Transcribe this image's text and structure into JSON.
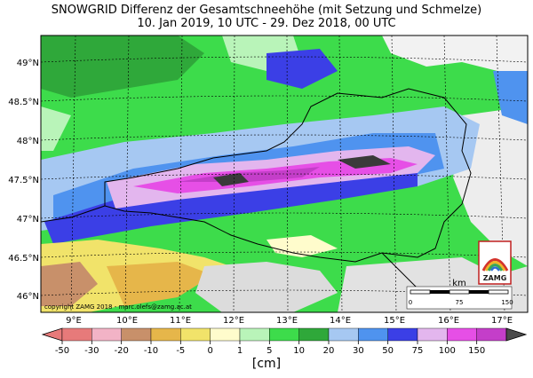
{
  "title_line1": "SNOWGRID Differenz der Gesamtschneehöhe (mit Setzung und Schmelze)",
  "title_line2": "10. Jan 2019, 10 UTC - 29. Dez 2018, 00 UTC",
  "lat_labels": [
    "49°N",
    "48.5°N",
    "48°N",
    "47.5°N",
    "47°N",
    "46.5°N",
    "46°N"
  ],
  "lon_labels": [
    "9°E",
    "10°E",
    "11°E",
    "12°E",
    "13°E",
    "14°E",
    "15°E",
    "16°E",
    "17°E"
  ],
  "copyright": "copyright ZAMG 2018 - marc.olefs@zamg.ac.at",
  "scale_bar": {
    "unit": "km",
    "ticks": [
      "0",
      "75",
      "150"
    ]
  },
  "logo_text": "ZAMG",
  "colorbar": {
    "ticks": [
      "-50",
      "-30",
      "-20",
      "-10",
      "-5",
      "0",
      "1",
      "5",
      "10",
      "20",
      "30",
      "50",
      "75",
      "100",
      "150"
    ],
    "colors": [
      "#e77a7a",
      "#f2b3c6",
      "#c8906a",
      "#e6b64a",
      "#f1e36a",
      "#fffccc",
      "#b9f4b9",
      "#3ddc4b",
      "#2fa83a",
      "#a6c8f2",
      "#4f93ef",
      "#3b3fe6",
      "#e3b6ee",
      "#e64fe6",
      "#c43ec9"
    ],
    "label": "[cm]"
  }
}
